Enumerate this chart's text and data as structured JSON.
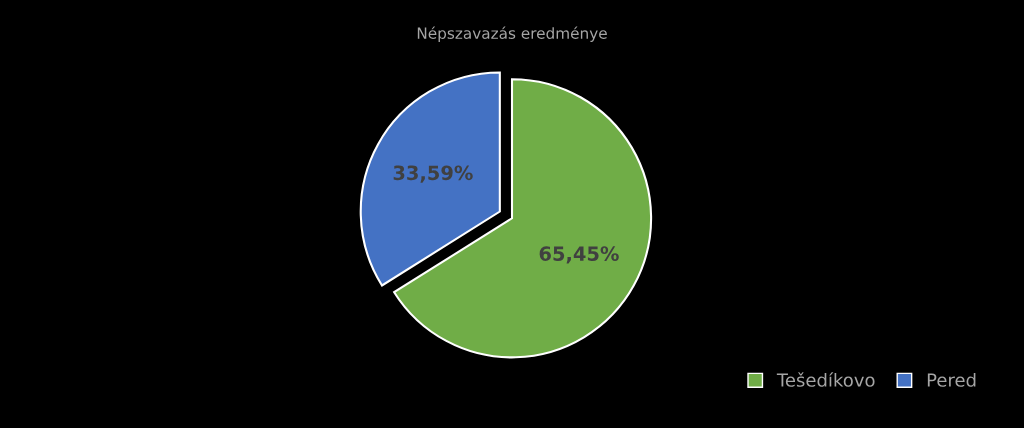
{
  "chart_data": {
    "type": "pie",
    "title": "Népszavazás eredménye",
    "categories": [
      "Tešedíkovo",
      "Pered"
    ],
    "values": [
      65.45,
      33.59
    ],
    "colors": [
      "#70ad47",
      "#4472c4"
    ],
    "value_labels": [
      "65,45%",
      "33,59%"
    ],
    "legend": "bottom right"
  }
}
